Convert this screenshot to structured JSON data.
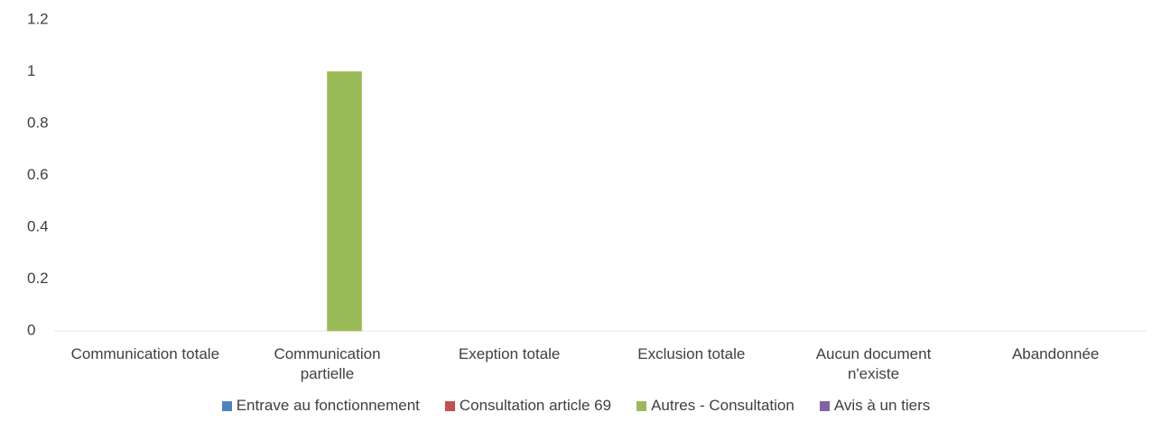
{
  "chart_data": {
    "type": "bar",
    "categories": [
      "Communication totale",
      "Communication partielle",
      "Exeption totale",
      "Exclusion totale",
      "Aucun document n'existe",
      "Abandonnée"
    ],
    "series": [
      {
        "name": "Entrave au fonctionnement",
        "color": "#4f81bd",
        "values": [
          0,
          0,
          0,
          0,
          0,
          0
        ]
      },
      {
        "name": "Consultation article 69",
        "color": "#c0504d",
        "values": [
          0,
          0,
          0,
          0,
          0,
          0
        ]
      },
      {
        "name": "Autres - Consultation",
        "color": "#9bbb59",
        "values": [
          0,
          1,
          0,
          0,
          0,
          0
        ]
      },
      {
        "name": "Avis à un tiers",
        "color": "#8064a2",
        "values": [
          0,
          0,
          0,
          0,
          0,
          0
        ]
      }
    ],
    "ylim": [
      0,
      1.2
    ],
    "yticks": [
      0,
      0.2,
      0.4,
      0.6,
      0.8,
      1,
      1.2
    ],
    "grid": false,
    "legend": "bottom"
  }
}
